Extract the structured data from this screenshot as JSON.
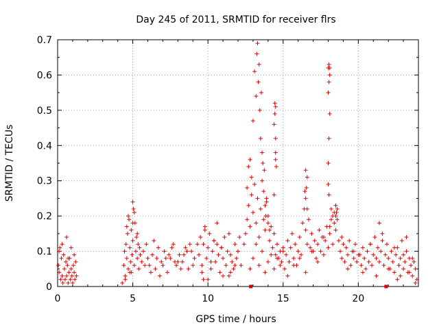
{
  "chart_data": {
    "type": "scatter",
    "title": "Day 245 of 2011, SRMTID for receiver flrs",
    "xlabel": "GPS time / hours",
    "ylabel": "SRMTID / TECUs",
    "xlim": [
      0,
      24
    ],
    "ylim": [
      0,
      0.7
    ],
    "xticks": [
      0,
      5,
      10,
      15,
      20
    ],
    "yticks": [
      0,
      0.1,
      0.2,
      0.3,
      0.4,
      0.5,
      0.6,
      0.7
    ],
    "grid": true,
    "marker": "plus",
    "color": "#e00000",
    "series": [
      {
        "name": "SRMTID",
        "x": [
          0.05,
          0.1,
          0.15,
          0.2,
          0.25,
          0.3,
          0.35,
          0.4,
          0.45,
          0.5,
          0.55,
          0.6,
          0.65,
          0.7,
          0.75,
          0.8,
          0.85,
          0.9,
          0.95,
          1.0,
          1.05,
          1.1,
          1.15,
          1.2,
          1.25,
          0.1,
          0.3,
          0.6,
          0.7,
          0.9,
          1.1,
          4.3,
          4.4,
          4.45,
          4.5,
          4.55,
          4.6,
          4.65,
          4.7,
          4.75,
          4.8,
          4.85,
          4.9,
          4.95,
          5.0,
          5.05,
          5.1,
          5.15,
          5.2,
          5.25,
          5.3,
          5.35,
          5.4,
          5.45,
          5.5,
          5.6,
          5.7,
          5.8,
          5.9,
          6.0,
          4.5,
          4.7,
          4.8,
          5.0,
          5.0,
          5.1,
          5.3,
          4.9,
          4.6,
          6.1,
          6.3,
          6.5,
          6.7,
          6.9,
          7.1,
          7.3,
          7.5,
          7.7,
          7.9,
          8.1,
          8.3,
          8.5,
          8.7,
          8.9,
          9.1,
          9.3,
          6.2,
          6.6,
          7.0,
          7.4,
          7.8,
          8.2,
          8.6,
          9.0,
          6.4,
          6.8,
          7.2,
          7.6,
          8.0,
          8.4,
          8.8,
          9.4,
          9.5,
          9.6,
          9.7,
          9.8,
          9.9,
          10.0,
          10.1,
          10.2,
          10.3,
          10.4,
          10.5,
          10.6,
          10.7,
          10.8,
          10.9,
          11.0,
          11.1,
          11.2,
          11.3,
          11.4,
          11.5,
          11.6,
          11.7,
          11.8,
          11.9,
          12.0,
          12.1,
          12.2,
          9.6,
          9.8,
          10.0,
          10.4,
          10.6,
          11.0,
          11.4,
          11.8,
          12.0,
          9.7,
          10.2,
          10.9,
          11.5,
          12.4,
          12.5,
          12.6,
          12.7,
          12.8,
          12.9,
          13.0,
          13.1,
          13.2,
          13.3,
          13.4,
          13.5,
          13.6,
          13.7,
          13.8,
          13.9,
          14.0,
          14.1,
          14.2,
          14.3,
          14.4,
          14.5,
          14.6,
          14.7,
          14.8,
          14.9,
          15.0,
          12.6,
          12.7,
          12.8,
          12.9,
          13.0,
          13.1,
          13.2,
          13.25,
          13.3,
          13.35,
          13.4,
          13.45,
          13.5,
          13.55,
          13.6,
          13.65,
          13.7,
          13.75,
          13.8,
          13.85,
          13.9,
          14.0,
          14.1,
          14.4,
          14.45,
          14.5,
          14.5,
          14.55,
          14.45,
          14.5,
          14.4,
          14.5,
          12.8,
          13.0,
          13.2,
          13.4,
          13.6,
          13.8,
          14.0,
          14.2,
          14.4,
          14.6,
          14.8,
          15.0,
          15.1,
          15.2,
          15.3,
          15.4,
          15.5,
          15.6,
          15.7,
          15.8,
          15.9,
          16.0,
          16.1,
          16.2,
          16.3,
          16.4,
          16.5,
          16.6,
          16.7,
          16.8,
          16.9,
          17.0,
          17.1,
          17.2,
          17.3,
          17.4,
          17.5,
          17.6,
          17.7,
          17.8,
          17.9,
          18.0,
          18.1,
          18.2,
          18.3,
          18.4,
          18.5,
          18.6,
          18.7,
          18.8,
          18.9,
          19.0,
          19.1,
          19.2,
          19.3,
          19.4,
          19.5,
          19.6,
          19.7,
          19.8,
          19.9,
          20.0,
          15.3,
          15.7,
          16.1,
          16.5,
          16.9,
          17.3,
          17.7,
          18.1,
          18.5,
          18.9,
          19.3,
          19.7,
          16.5,
          16.55,
          16.6,
          16.5,
          16.6,
          16.45,
          18.0,
          18.05,
          18.1,
          18.0,
          18.05,
          18.1,
          18.0,
          18.05,
          18.1,
          18.0,
          18.05,
          18.2,
          18.3,
          18.4,
          18.5,
          18.55,
          18.6,
          20.1,
          20.2,
          20.3,
          20.4,
          20.5,
          20.6,
          20.7,
          20.8,
          20.9,
          21.0,
          21.1,
          21.2,
          21.3,
          21.4,
          21.5,
          21.6,
          21.7,
          21.8,
          21.9,
          22.0,
          22.1,
          22.2,
          22.3,
          22.4,
          22.5,
          22.6,
          22.7,
          22.8,
          22.9,
          23.0,
          23.1,
          23.2,
          23.3,
          23.4,
          23.5,
          23.6,
          23.7,
          23.8,
          23.9,
          20.3,
          20.8,
          21.2,
          21.6,
          22.0,
          22.4,
          22.8,
          23.2,
          23.6,
          21.4,
          22.6,
          23.0,
          23.4,
          23.8
        ],
        "y": [
          0.06,
          0.04,
          0.11,
          0.02,
          0.08,
          0.03,
          0.01,
          0.09,
          0.05,
          0.02,
          0.07,
          0.03,
          0.06,
          0.01,
          0.04,
          0.08,
          0.02,
          0.05,
          0.03,
          0.01,
          0.06,
          0.04,
          0.02,
          0.07,
          0.03,
          0.1,
          0.12,
          0.14,
          0.08,
          0.11,
          0.09,
          0.01,
          0.06,
          0.1,
          0.03,
          0.12,
          0.08,
          0.15,
          0.05,
          0.19,
          0.11,
          0.07,
          0.16,
          0.09,
          0.13,
          0.22,
          0.06,
          0.18,
          0.1,
          0.14,
          0.08,
          0.12,
          0.05,
          0.11,
          0.09,
          0.07,
          0.1,
          0.06,
          0.12,
          0.08,
          0.02,
          0.2,
          0.04,
          0.24,
          0.18,
          0.21,
          0.15,
          0.04,
          0.17,
          0.06,
          0.09,
          0.05,
          0.11,
          0.07,
          0.1,
          0.04,
          0.08,
          0.12,
          0.06,
          0.09,
          0.07,
          0.11,
          0.05,
          0.1,
          0.08,
          0.12,
          0.04,
          0.08,
          0.06,
          0.09,
          0.07,
          0.05,
          0.1,
          0.06,
          0.13,
          0.03,
          0.08,
          0.11,
          0.07,
          0.09,
          0.12,
          0.09,
          0.14,
          0.06,
          0.12,
          0.17,
          0.08,
          0.11,
          0.15,
          0.05,
          0.1,
          0.13,
          0.07,
          0.12,
          0.09,
          0.04,
          0.11,
          0.08,
          0.14,
          0.06,
          0.1,
          0.03,
          0.09,
          0.07,
          0.05,
          0.12,
          0.08,
          0.1,
          0.14,
          0.06,
          0.04,
          0.16,
          0.02,
          0.13,
          0.18,
          0.03,
          0.15,
          0.06,
          0.1,
          0.02,
          0.07,
          0.11,
          0.04,
          0.12,
          0.15,
          0.19,
          0.23,
          0.17,
          0.26,
          0.21,
          0.29,
          0.18,
          0.25,
          0.14,
          0.22,
          0.3,
          0.19,
          0.16,
          0.24,
          0.2,
          0.13,
          0.17,
          0.11,
          0.15,
          0.09,
          0.12,
          0.08,
          0.1,
          0.07,
          0.11,
          0.28,
          0.34,
          0.36,
          0.31,
          0.47,
          0.61,
          0.54,
          0.66,
          0.69,
          0.58,
          0.63,
          0.5,
          0.42,
          0.55,
          0.38,
          0.35,
          0.27,
          0.33,
          0.23,
          0.2,
          0.25,
          0.18,
          0.16,
          0.46,
          0.52,
          0.42,
          0.38,
          0.34,
          0.49,
          0.51,
          0.26,
          0.36,
          0.05,
          0.08,
          0.12,
          0.06,
          0.1,
          0.04,
          0.07,
          0.09,
          0.05,
          0.08,
          0.06,
          0.1,
          0.05,
          0.09,
          0.13,
          0.07,
          0.11,
          0.15,
          0.08,
          0.12,
          0.06,
          0.1,
          0.14,
          0.09,
          0.18,
          0.22,
          0.16,
          0.12,
          0.19,
          0.11,
          0.15,
          0.1,
          0.13,
          0.08,
          0.12,
          0.16,
          0.1,
          0.14,
          0.09,
          0.13,
          0.17,
          0.11,
          0.15,
          0.19,
          0.12,
          0.21,
          0.16,
          0.22,
          0.13,
          0.1,
          0.08,
          0.12,
          0.07,
          0.11,
          0.09,
          0.13,
          0.06,
          0.1,
          0.08,
          0.12,
          0.07,
          0.09,
          0.03,
          0.06,
          0.08,
          0.04,
          0.1,
          0.07,
          0.14,
          0.17,
          0.2,
          0.14,
          0.05,
          0.1,
          0.25,
          0.28,
          0.31,
          0.33,
          0.22,
          0.27,
          0.35,
          0.42,
          0.49,
          0.55,
          0.58,
          0.6,
          0.62,
          0.63,
          0.62,
          0.29,
          0.26,
          0.22,
          0.2,
          0.18,
          0.23,
          0.21,
          0.19,
          0.09,
          0.06,
          0.11,
          0.08,
          0.05,
          0.1,
          0.07,
          0.12,
          0.06,
          0.09,
          0.14,
          0.08,
          0.11,
          0.07,
          0.1,
          0.13,
          0.06,
          0.09,
          0.12,
          0.08,
          0.05,
          0.1,
          0.07,
          0.04,
          0.09,
          0.11,
          0.06,
          0.08,
          0.13,
          0.05,
          0.07,
          0.1,
          0.04,
          0.08,
          0.06,
          0.03,
          0.07,
          0.05,
          0.02,
          0.04,
          0.12,
          0.03,
          0.15,
          0.05,
          0.11,
          0.03,
          0.14,
          0.08,
          0.18,
          0.02,
          0.09,
          0.04,
          0.01
        ]
      }
    ],
    "special_markers": {
      "x": [
        12.85,
        21.85
      ],
      "y": [
        0.0,
        0.0
      ],
      "shape": "square"
    }
  }
}
